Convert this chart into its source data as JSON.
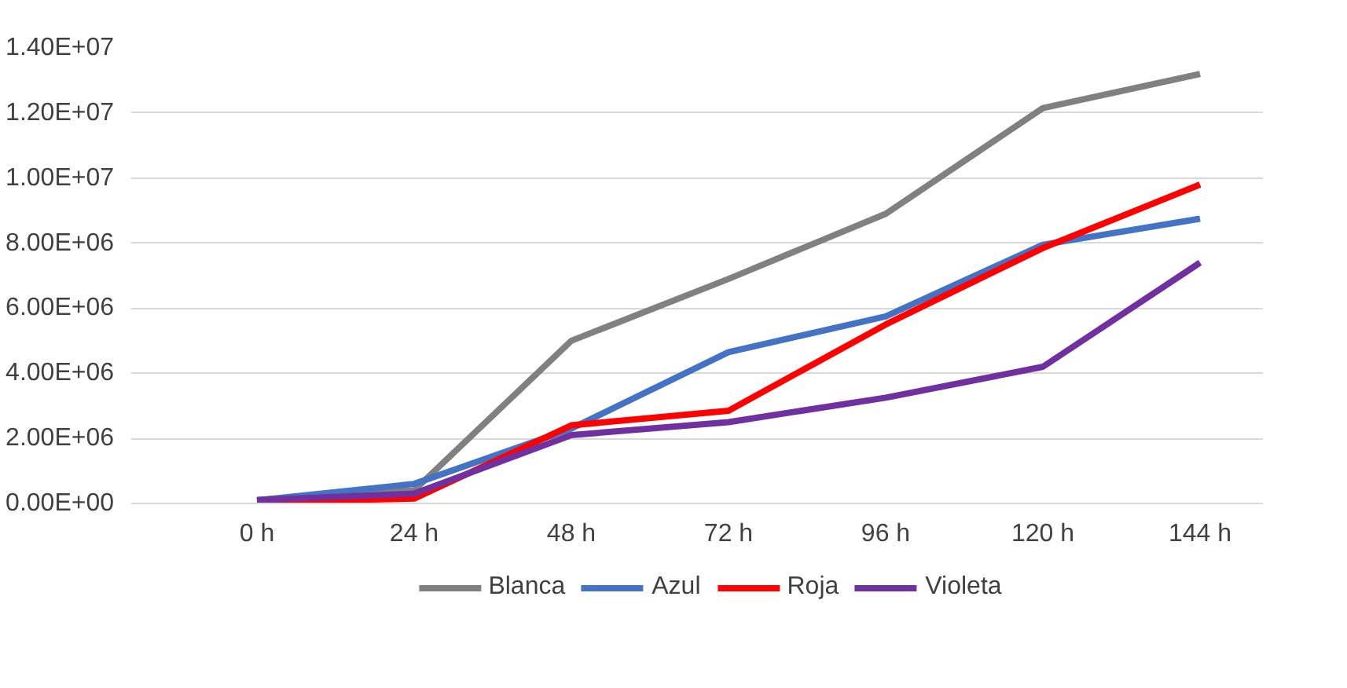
{
  "chart_data": {
    "type": "line",
    "categories": [
      "0 h",
      "24 h",
      "48 h",
      "72 h",
      "96 h",
      "120 h",
      "144 h"
    ],
    "series": [
      {
        "name": "Blanca",
        "color": "#808080",
        "values": [
          100000,
          400000,
          5000000,
          6900000,
          8900000,
          12150000,
          13200000
        ]
      },
      {
        "name": "Azul",
        "color": "#4472c4",
        "values": [
          100000,
          600000,
          2300000,
          4650000,
          5750000,
          7950000,
          8750000
        ]
      },
      {
        "name": "Roja",
        "color": "#ff0000",
        "values": [
          50000,
          150000,
          2400000,
          2850000,
          5500000,
          7850000,
          9800000
        ]
      },
      {
        "name": "Violeta",
        "color": "#7030a0",
        "values": [
          100000,
          300000,
          2100000,
          2500000,
          3250000,
          4200000,
          7400000
        ]
      }
    ],
    "ylim": [
      0,
      14000000
    ],
    "yticks": [
      {
        "value": 0,
        "label": "0.00E+00"
      },
      {
        "value": 2000000,
        "label": "2.00E+06"
      },
      {
        "value": 4000000,
        "label": "4.00E+06"
      },
      {
        "value": 6000000,
        "label": "6.00E+06"
      },
      {
        "value": 8000000,
        "label": "8.00E+06"
      },
      {
        "value": 10000000,
        "label": "1.00E+07"
      },
      {
        "value": 12000000,
        "label": "1.20E+07"
      },
      {
        "value": 14000000,
        "label": "1.40E+07"
      }
    ],
    "grid": "y",
    "legend": "bottom",
    "line_style": "solid",
    "marker": "none"
  }
}
